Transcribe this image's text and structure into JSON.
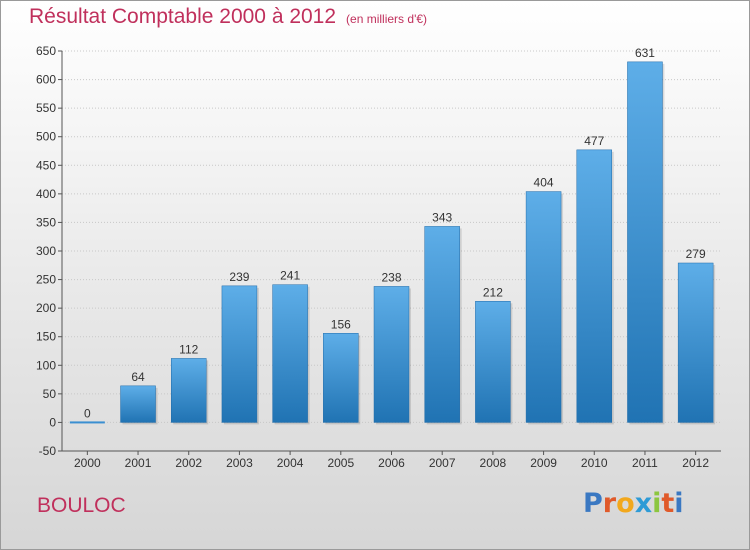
{
  "header": {
    "title": "Résultat Comptable 2000 à 2012",
    "subtitle": "(en milliers d'€)"
  },
  "footer": {
    "commune": "BOULOC",
    "logo": "Proxiti"
  },
  "colors": {
    "title": "#c0305c",
    "bar_top": "#5eaee8",
    "bar_bottom": "#2073b3",
    "grid": "#c8c8c8"
  },
  "chart_data": {
    "type": "bar",
    "categories": [
      "2000",
      "2001",
      "2002",
      "2003",
      "2004",
      "2005",
      "2006",
      "2007",
      "2008",
      "2009",
      "2010",
      "2011",
      "2012"
    ],
    "values": [
      0,
      64,
      112,
      239,
      241,
      156,
      238,
      343,
      212,
      404,
      477,
      631,
      279
    ],
    "data_labels": [
      "0",
      "64",
      "112",
      "239",
      "241",
      "156",
      "238",
      "343",
      "212",
      "404",
      "477",
      "631",
      "279"
    ],
    "title": "Résultat Comptable 2000 à 2012",
    "subtitle": "(en milliers d'€)",
    "xlabel": "",
    "ylabel": "",
    "ylim": [
      -50,
      650
    ],
    "yticks": [
      -50,
      0,
      50,
      100,
      150,
      200,
      250,
      300,
      350,
      400,
      450,
      500,
      550,
      600,
      650
    ],
    "grid": true,
    "legend": "none"
  }
}
